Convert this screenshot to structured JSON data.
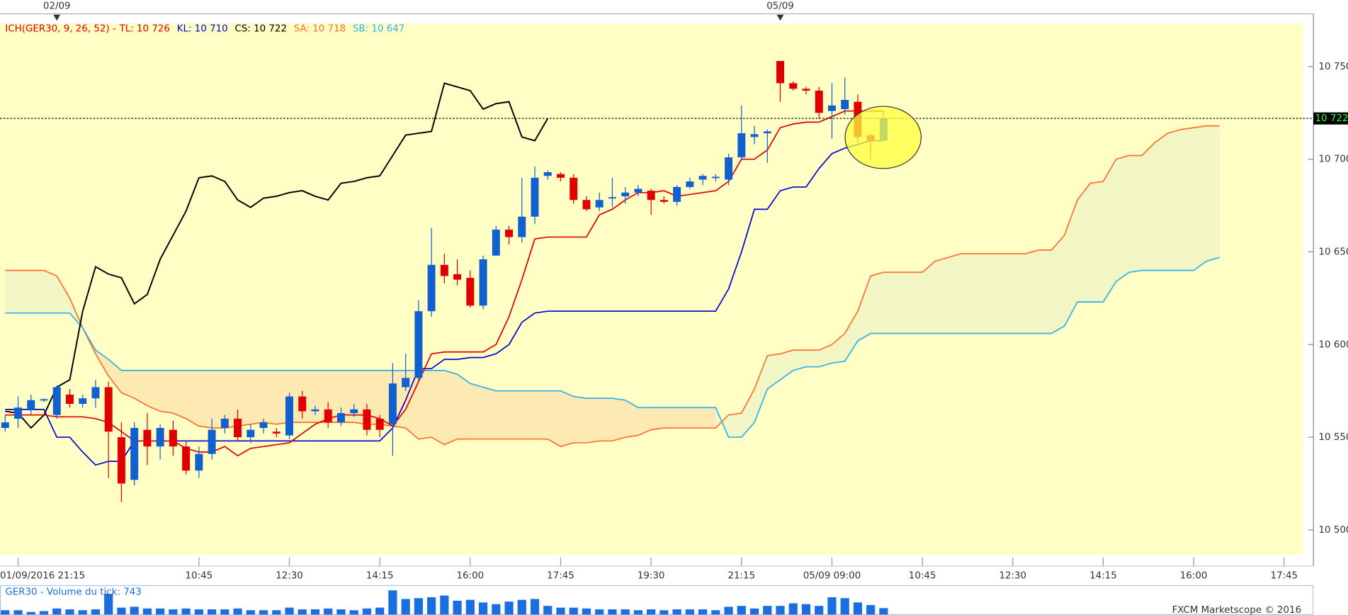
{
  "chart_data": {
    "type": "candlestick",
    "legend": {
      "title": {
        "text": "ICH(GER30, 9, 26, 52) - ",
        "color": "#e00000"
      },
      "items": [
        {
          "text": "TL: 10 726",
          "color": "#e00000"
        },
        {
          "text": "KL: 10 710",
          "color": "#0000d0"
        },
        {
          "text": "CS: 10 722",
          "color": "#000000"
        },
        {
          "text": "SA: 10 718",
          "color": "#ff7030"
        },
        {
          "text": "SB: 10 647",
          "color": "#30b0ee"
        }
      ]
    },
    "date_markers": [
      {
        "value": 4,
        "label": "02/09"
      },
      {
        "value": 60,
        "label": "05/09"
      }
    ],
    "xlim": [
      -0.4,
      100.47
    ],
    "xticks": [
      {
        "value": 1,
        "label": "01/09/2016 21:15"
      },
      {
        "value": 15,
        "label": "10:45"
      },
      {
        "value": 22,
        "label": "12:30"
      },
      {
        "value": 29,
        "label": "14:15"
      },
      {
        "value": 36,
        "label": "16:00"
      },
      {
        "value": 43,
        "label": "17:45"
      },
      {
        "value": 50,
        "label": "19:30"
      },
      {
        "value": 57,
        "label": "21:15"
      },
      {
        "value": 64,
        "label": "05/09 09:00"
      },
      {
        "value": 71,
        "label": "10:45"
      },
      {
        "value": 78,
        "label": "12:30"
      },
      {
        "value": 85,
        "label": "14:15"
      },
      {
        "value": 92,
        "label": "16:00"
      },
      {
        "value": 99,
        "label": "17:45"
      }
    ],
    "ylim": [
      10486.5,
      10773.3
    ],
    "yticks": [
      {
        "value": 10500,
        "label": "10 500"
      },
      {
        "value": 10550,
        "label": "10 550"
      },
      {
        "value": 10600,
        "label": "10 600"
      },
      {
        "value": 10650,
        "label": "10 650"
      },
      {
        "value": 10700,
        "label": "10 700"
      },
      {
        "value": 10750,
        "label": "10 750"
      }
    ],
    "last_price": {
      "value": 10722,
      "label": "10 722"
    },
    "candles": {
      "up_color": "#1060d0",
      "down_color": "#e00000",
      "open": [
        10555,
        10560,
        10565,
        10570,
        10562,
        10573,
        10568,
        10571,
        10577,
        10550,
        10527,
        10554,
        10545,
        10554,
        10545,
        10532,
        10541,
        10555,
        10560,
        10550,
        10555,
        10553,
        10551,
        10572,
        10564,
        10565,
        10558,
        10563,
        10565,
        10560,
        10557,
        10577,
        10582,
        10618,
        10643,
        10638,
        10636,
        10621,
        10648,
        10662,
        10658,
        10669,
        10691,
        10692,
        10690,
        10678,
        10674,
        10679,
        10680,
        10682,
        10683,
        10678,
        10677,
        10685,
        10689,
        10690,
        10689,
        10701,
        10712,
        10714,
        10753,
        10741,
        10738,
        10737,
        10726,
        10727,
        10731,
        10713,
        10710
      ],
      "high": [
        10562,
        10572,
        10573,
        10571,
        10578,
        10576,
        10573,
        10581,
        10580,
        10558,
        10558,
        10563,
        10557,
        10559,
        10548,
        10545,
        10560,
        10562,
        10565,
        10557,
        10560,
        10555,
        10574,
        10575,
        10567,
        10569,
        10566,
        10568,
        10568,
        10562,
        10590,
        10595,
        10624,
        10663,
        10649,
        10646,
        10640,
        10648,
        10664,
        10664,
        10690,
        10696,
        10694,
        10693,
        10692,
        10680,
        10682,
        10690,
        10685,
        10686,
        10684,
        10680,
        10686,
        10690,
        10692,
        10692,
        10703,
        10729,
        10718,
        10716,
        10753,
        10742,
        10739,
        10739,
        10741,
        10744,
        10735,
        10714,
        10726
      ],
      "low": [
        10553,
        10555,
        10562,
        10569,
        10560,
        10566,
        10566,
        10566,
        10528,
        10515,
        10524,
        10535,
        10538,
        10540,
        10530,
        10528,
        10538,
        10552,
        10548,
        10547,
        10552,
        10550,
        10549,
        10560,
        10562,
        10555,
        10556,
        10561,
        10551,
        10550,
        10540,
        10575,
        10580,
        10615,
        10633,
        10632,
        10620,
        10619,
        10648,
        10654,
        10655,
        10665,
        10689,
        10688,
        10676,
        10672,
        10672,
        10674,
        10676,
        10680,
        10670,
        10676,
        10675,
        10684,
        10686,
        10688,
        10686,
        10700,
        10708,
        10698,
        10731,
        10737,
        10735,
        10722,
        10711,
        10724,
        10709,
        10700,
        10710
      ],
      "close": [
        10558,
        10566,
        10570,
        10570.5,
        10577,
        10568,
        10571,
        10577,
        10553,
        10525,
        10555,
        10545,
        10555,
        10545,
        10532,
        10541,
        10554,
        10560,
        10550,
        10554,
        10558,
        10552,
        10572,
        10564,
        10565,
        10558,
        10563,
        10565,
        10554,
        10554,
        10579,
        10582,
        10618,
        10643,
        10637,
        10635,
        10621,
        10646,
        10662,
        10658,
        10669,
        10690,
        10693,
        10690,
        10678,
        10673,
        10678,
        10679.5,
        10682,
        10684,
        10678,
        10677,
        10685,
        10688,
        10691,
        10690.5,
        10701,
        10714,
        10713.5,
        10715,
        10741,
        10738,
        10737,
        10725,
        10729,
        10732,
        10712,
        10710,
        10722
      ]
    },
    "series": [
      {
        "name": "TL",
        "color": "#e00000",
        "values": [
          10562,
          10562,
          10562,
          10562,
          10561,
          10561,
          10561,
          10560,
          10558,
          10553,
          10548,
          10548,
          10548,
          10548,
          10544,
          10542,
          10542,
          10545,
          10540,
          10544,
          10545,
          10546,
          10547,
          10552,
          10557,
          10560,
          10562,
          10562,
          10562,
          10560,
          10556,
          10565,
          10580,
          10595,
          10596,
          10596,
          10596,
          10596,
          10600,
          10615,
          10635,
          10657,
          10658,
          10658,
          10658,
          10658,
          10670,
          10673,
          10678,
          10682,
          10682,
          10683,
          10680,
          10681,
          10682,
          10683,
          10688,
          10700,
          10700,
          10705,
          10717,
          10719,
          10720,
          10720,
          10723,
          10726,
          10726,
          10726,
          10726
        ]
      },
      {
        "name": "KL",
        "color": "#0000d0",
        "values": [
          10565,
          10565,
          10565,
          10565,
          10550,
          10550,
          10542,
          10535,
          10537,
          10537,
          10548,
          10548,
          10548,
          10548,
          10548,
          10548,
          10548,
          10548,
          10548,
          10548,
          10548,
          10548,
          10548,
          10548,
          10548,
          10548,
          10548,
          10548,
          10548,
          10548,
          10555,
          10570,
          10587,
          10587,
          10592,
          10592,
          10593,
          10593,
          10595,
          10600,
          10612,
          10617,
          10618,
          10618,
          10618,
          10618,
          10618,
          10618,
          10618,
          10618,
          10618,
          10618,
          10618,
          10618,
          10618,
          10618,
          10630,
          10650,
          10673,
          10673,
          10683,
          10685,
          10685,
          10695,
          10703,
          10706,
          10708,
          10710,
          10710
        ]
      },
      {
        "name": "CS",
        "color": "#000000",
        "values": [
          10564,
          10563,
          10555,
          10562,
          10577,
          10581,
          10618,
          10642,
          10638,
          10636,
          10622,
          10627,
          10646,
          10659,
          10672,
          10690,
          10691,
          10688,
          10678,
          10674,
          10679,
          10680,
          10682,
          10683,
          10680,
          10678,
          10687,
          10688,
          10690,
          10691,
          10702,
          10713,
          10714,
          10715,
          10741,
          10739,
          10737,
          10727,
          10730,
          10731,
          10712,
          10710,
          10722
        ]
      },
      {
        "name": "SA",
        "color": "#ff7030",
        "values": [
          10640,
          10640,
          10640,
          10640,
          10637,
          10625,
          10609,
          10595,
          10583,
          10574,
          10571,
          10567,
          10564,
          10563,
          10560,
          10556,
          10555,
          10555,
          10556,
          10557,
          10558,
          10557,
          10558,
          10558,
          10558,
          10558,
          10558,
          10558,
          10557,
          10557,
          10556,
          10555,
          10549,
          10550,
          10546,
          10549,
          10549,
          10549,
          10549,
          10549,
          10549,
          10549,
          10549,
          10545,
          10547,
          10547,
          10548,
          10548,
          10550,
          10551,
          10554,
          10555,
          10555,
          10555,
          10555,
          10555,
          10562,
          10563,
          10576,
          10594,
          10595,
          10597,
          10597,
          10597,
          10600,
          10606,
          10618,
          10637,
          10639,
          10639,
          10639,
          10639,
          10645,
          10647,
          10649,
          10649,
          10649,
          10649,
          10649,
          10649,
          10651,
          10651,
          10659,
          10678,
          10687,
          10688,
          10700,
          10702,
          10702,
          10709,
          10714,
          10716,
          10717,
          10718,
          10718
        ]
      },
      {
        "name": "SB",
        "color": "#30b0ee",
        "values": [
          10617,
          10617,
          10617,
          10617,
          10617,
          10617,
          10609,
          10597,
          10592,
          10586,
          10586,
          10586,
          10586,
          10586,
          10586,
          10586,
          10586,
          10586,
          10586,
          10586,
          10586,
          10586,
          10586,
          10586,
          10586,
          10586,
          10586,
          10586,
          10586,
          10586,
          10586,
          10586,
          10586,
          10586,
          10586,
          10584,
          10579,
          10577,
          10575,
          10575,
          10575,
          10575,
          10575,
          10575,
          10572,
          10571,
          10571,
          10571,
          10570,
          10566,
          10566,
          10566,
          10566,
          10566,
          10566,
          10566,
          10550,
          10550,
          10558,
          10576,
          10581,
          10586,
          10588,
          10588,
          10590,
          10591,
          10602,
          10606,
          10606,
          10606,
          10606,
          10606,
          10606,
          10606,
          10606,
          10606,
          10606,
          10606,
          10606,
          10606,
          10606,
          10606,
          10610,
          10623,
          10623,
          10623,
          10634,
          10639,
          10640,
          10640,
          10640,
          10640,
          10640,
          10645,
          10647
        ]
      }
    ],
    "cloud_colors": {
      "a_above": "#f1f6c4",
      "b_above": "#fde9b2"
    },
    "volume": {
      "title": "GER30 - Volume du tick: 743",
      "color": "#1a6fe0",
      "ylim": [
        0,
        3400
      ],
      "values": [
        500,
        500,
        300,
        400,
        700,
        600,
        500,
        600,
        2400,
        800,
        900,
        700,
        700,
        600,
        700,
        600,
        600,
        600,
        700,
        500,
        500,
        500,
        800,
        600,
        600,
        700,
        600,
        500,
        700,
        800,
        2800,
        1800,
        1900,
        2000,
        2200,
        1600,
        1700,
        1400,
        1200,
        1500,
        1700,
        1800,
        1000,
        800,
        800,
        700,
        600,
        600,
        600,
        500,
        600,
        500,
        600,
        600,
        600,
        500,
        900,
        1000,
        700,
        1000,
        1000,
        1300,
        1200,
        1000,
        2000,
        1900,
        1400,
        1100,
        743
      ]
    },
    "footer": "FXCM Marketscope © 2016"
  }
}
